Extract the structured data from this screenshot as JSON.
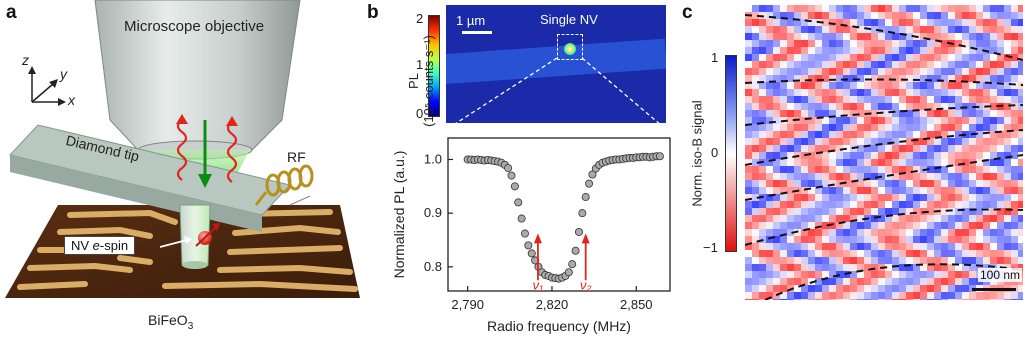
{
  "panel_a": {
    "letter": "a",
    "objective_label": "Microscope objective",
    "tip_label": "Diamond tip",
    "rf_label": "RF",
    "spin_label_prefix": "NV ",
    "spin_label_italic": "e",
    "spin_label_suffix": "-spin",
    "axis_z": "z",
    "axis_y": "y",
    "axis_x": "x",
    "sample_label": "BiFeO",
    "sample_subscript": "3"
  },
  "panel_b": {
    "letter": "b",
    "scale_label": "1 µm",
    "single_nv_label": "Single NV",
    "colorbar_title": "PL",
    "colorbar_units": "(10⁵ counts s⁻¹)",
    "colorbar_ticks": [
      "2",
      "1",
      "0"
    ],
    "nu1_label": "ν₁",
    "nu2_label": "ν₂"
  },
  "panel_c": {
    "letter": "c",
    "colorbar_title": "Norm. iso-B signal",
    "colorbar_ticks": [
      "1",
      "0",
      "−1"
    ],
    "scale_label": "100 nm"
  },
  "chart_data": {
    "type": "scatter",
    "xlabel": "Radio frequency (MHz)",
    "ylabel": "Normalized PL (a.u.)",
    "xlim": [
      2783,
      2862
    ],
    "ylim": [
      0.755,
      1.04
    ],
    "xticks": [
      2790,
      2820,
      2850
    ],
    "xtick_labels": [
      "2,790",
      "2,820",
      "2,850"
    ],
    "yticks": [
      0.8,
      0.9,
      1.0
    ],
    "ytick_labels": [
      "0.8",
      "0.9",
      "1.0"
    ],
    "series": [
      {
        "x": [
          2790,
          2791.2,
          2792.4,
          2793.6,
          2794.8,
          2796,
          2797.2,
          2798.4,
          2799.6,
          2800.8,
          2802,
          2803.2,
          2804.4,
          2805.6,
          2806.8,
          2808,
          2809.2,
          2810.4,
          2811.6,
          2812.8,
          2814,
          2815.2,
          2816.4,
          2817.6,
          2818.8,
          2820,
          2821.2,
          2822.4,
          2823.6,
          2824.8,
          2826,
          2827.2,
          2828.4,
          2829.6,
          2830.8,
          2832,
          2833.2,
          2834.4,
          2835.6,
          2836.8,
          2838,
          2839.2,
          2840.4,
          2841.6,
          2842.8,
          2844,
          2845.2,
          2846.4,
          2847.6,
          2848.8,
          2850,
          2851.2,
          2852.4,
          2853.6,
          2854.8,
          2856,
          2857.2,
          2858.4
        ],
        "y": [
          1.0,
          1.0,
          0.999,
          1.0,
          0.999,
          0.998,
          0.999,
          0.998,
          0.997,
          0.996,
          0.994,
          0.99,
          0.984,
          0.97,
          0.95,
          0.92,
          0.89,
          0.862,
          0.84,
          0.825,
          0.812,
          0.8,
          0.79,
          0.785,
          0.783,
          0.78,
          0.779,
          0.778,
          0.78,
          0.783,
          0.79,
          0.805,
          0.83,
          0.865,
          0.9,
          0.93,
          0.955,
          0.972,
          0.983,
          0.99,
          0.994,
          0.996,
          0.998,
          0.999,
          1.0,
          1.0,
          1.001,
          1.002,
          1.003,
          1.003,
          1.004,
          1.004,
          1.005,
          1.005,
          1.004,
          1.005,
          1.006,
          1.006
        ]
      }
    ],
    "annotations": [
      "ν₁",
      "ν₂"
    ],
    "nu_markers_x": [
      2815,
      2832
    ]
  }
}
